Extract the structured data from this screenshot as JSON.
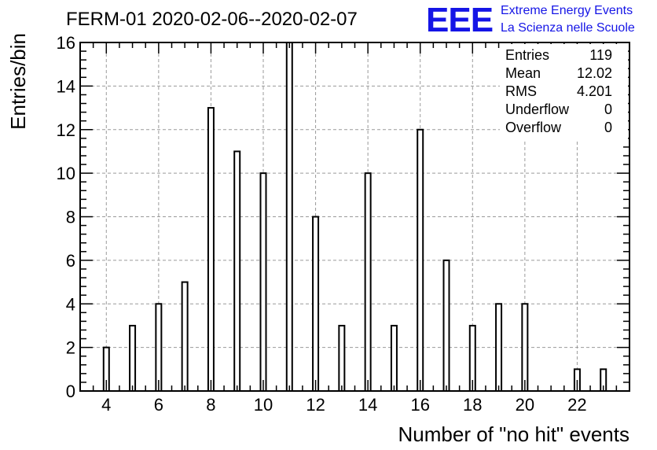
{
  "chart_data": {
    "type": "bar",
    "title": "FERM-01 2020-02-06--2020-02-07",
    "xlabel": "Number of \"no hit\" events",
    "ylabel": "Entries/bin",
    "xlim": [
      3,
      24
    ],
    "ylim": [
      0,
      16
    ],
    "grid": true,
    "x_ticks": [
      "4",
      "6",
      "8",
      "10",
      "12",
      "14",
      "16",
      "18",
      "20",
      "22"
    ],
    "y_ticks": [
      "0",
      "2",
      "4",
      "6",
      "8",
      "10",
      "12",
      "14",
      "16"
    ],
    "bins": [
      {
        "x": 4,
        "value": 2
      },
      {
        "x": 5,
        "value": 3
      },
      {
        "x": 6,
        "value": 4
      },
      {
        "x": 7,
        "value": 5
      },
      {
        "x": 8,
        "value": 13
      },
      {
        "x": 9,
        "value": 11
      },
      {
        "x": 10,
        "value": 10
      },
      {
        "x": 11,
        "value": 16
      },
      {
        "x": 12,
        "value": 8
      },
      {
        "x": 13,
        "value": 3
      },
      {
        "x": 14,
        "value": 10
      },
      {
        "x": 15,
        "value": 3
      },
      {
        "x": 16,
        "value": 12
      },
      {
        "x": 17,
        "value": 6
      },
      {
        "x": 18,
        "value": 3
      },
      {
        "x": 19,
        "value": 4
      },
      {
        "x": 20,
        "value": 4
      },
      {
        "x": 22,
        "value": 1
      },
      {
        "x": 23,
        "value": 1
      }
    ],
    "stats": [
      {
        "label": "Entries",
        "value": "119"
      },
      {
        "label": "Mean",
        "value": "12.02"
      },
      {
        "label": "RMS",
        "value": "4.201"
      },
      {
        "label": "Underflow",
        "value": "0"
      },
      {
        "label": "Overflow",
        "value": "0"
      }
    ],
    "stats_placement": "top-right"
  },
  "logo": {
    "mark": "EEE",
    "line1": "Extreme Energy Events",
    "line2": "La Scienza nelle Scuole",
    "color": "#1515e6"
  }
}
